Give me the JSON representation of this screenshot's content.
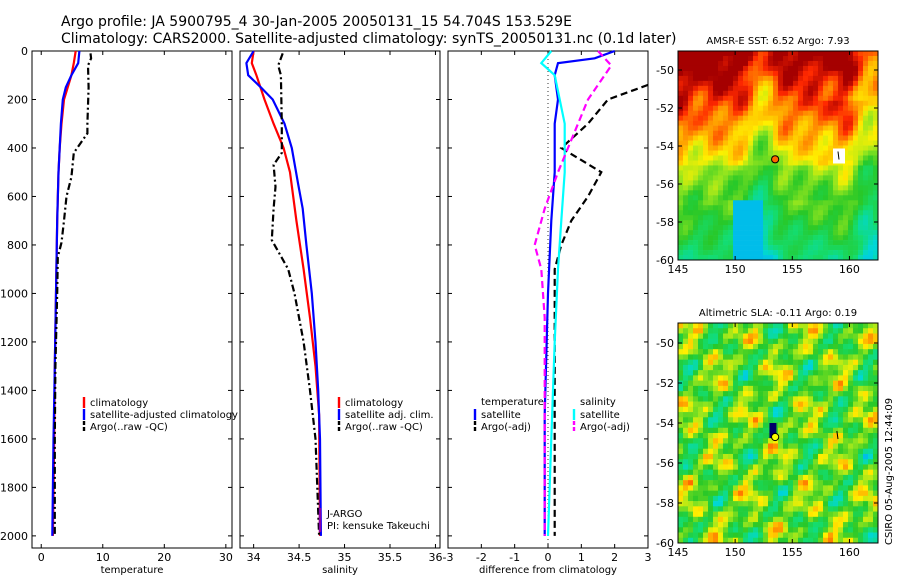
{
  "header": {
    "title_line1": "Argo profile: JA 5900795_4 30-Jan-2005 20050131_15 54.704S 153.529E",
    "title_line2": "Climatology: CARS2000. Satellite-adjusted climatology: synTS_20050131.nc (0.1d later)"
  },
  "footer": {
    "credit": "CSIRO 05-Aug-2005 12:44:09"
  },
  "colors": {
    "red": "#ff0000",
    "blue": "#0000ff",
    "black": "#000000",
    "cyan": "#00ffff",
    "magenta": "#ff00ff"
  },
  "chart_data": [
    {
      "type": "line",
      "id": "temperature",
      "xlabel": "temperature",
      "ylabel": "",
      "xlim": [
        -1.5,
        31
      ],
      "ylim": [
        2050,
        0
      ],
      "y_reversed": true,
      "xticks": [
        "0",
        "10",
        "20",
        "30"
      ],
      "yticks": [
        "0",
        "200",
        "400",
        "600",
        "800",
        "1000",
        "1200",
        "1400",
        "1600",
        "1800",
        "2000"
      ],
      "series": [
        {
          "name": "climatology",
          "color": "#ff0000",
          "dash": "solid",
          "points": [
            [
              5.6,
              0
            ],
            [
              5.3,
              50
            ],
            [
              4.9,
              100
            ],
            [
              4.3,
              150
            ],
            [
              3.7,
              200
            ],
            [
              3.3,
              300
            ],
            [
              3.0,
              400
            ],
            [
              2.8,
              500
            ],
            [
              2.6,
              700
            ],
            [
              2.4,
              1000
            ],
            [
              2.2,
              1300
            ],
            [
              2.1,
              1600
            ],
            [
              1.9,
              2000
            ]
          ]
        },
        {
          "name": "satellite-adjusted climatology",
          "color": "#0000ff",
          "dash": "solid",
          "points": [
            [
              6.2,
              0
            ],
            [
              6.0,
              50
            ],
            [
              4.9,
              100
            ],
            [
              4.0,
              150
            ],
            [
              3.5,
              200
            ],
            [
              3.2,
              300
            ],
            [
              3.0,
              400
            ],
            [
              2.8,
              500
            ],
            [
              2.6,
              700
            ],
            [
              2.4,
              1000
            ],
            [
              2.2,
              1300
            ],
            [
              2.0,
              1600
            ],
            [
              1.8,
              2000
            ]
          ]
        },
        {
          "name": "Argo(..raw -QC)",
          "color": "#000000",
          "dash": "dashdot",
          "points": [
            [
              8.0,
              10
            ],
            [
              8.1,
              30
            ],
            [
              7.6,
              60
            ],
            [
              7.7,
              150
            ],
            [
              7.5,
              300
            ],
            [
              7.5,
              340
            ],
            [
              6.4,
              380
            ],
            [
              5.3,
              420
            ],
            [
              4.9,
              520
            ],
            [
              4.1,
              600
            ],
            [
              3.7,
              700
            ],
            [
              3.3,
              790
            ],
            [
              2.7,
              850
            ],
            [
              2.6,
              1000
            ],
            [
              2.3,
              1300
            ],
            [
              2.2,
              1600
            ],
            [
              2.2,
              2000
            ]
          ]
        }
      ],
      "legend": {
        "position": "lower-right",
        "entries": [
          "climatology",
          "satellite-adjusted climatology",
          "Argo(..raw -QC)"
        ]
      }
    },
    {
      "type": "line",
      "id": "salinity",
      "xlabel": "salinity",
      "ylabel": "",
      "xlim": [
        33.85,
        36.05
      ],
      "ylim": [
        2050,
        0
      ],
      "y_reversed": true,
      "xticks": [
        "34",
        "34.5",
        "35",
        "35.5",
        "36"
      ],
      "series": [
        {
          "name": "climatology",
          "color": "#ff0000",
          "dash": "solid",
          "points": [
            [
              34.0,
              0
            ],
            [
              33.98,
              50
            ],
            [
              34.03,
              100
            ],
            [
              34.12,
              200
            ],
            [
              34.22,
              300
            ],
            [
              34.33,
              400
            ],
            [
              34.4,
              500
            ],
            [
              34.47,
              700
            ],
            [
              34.55,
              900
            ],
            [
              34.62,
              1100
            ],
            [
              34.68,
              1300
            ],
            [
              34.72,
              1500
            ],
            [
              34.73,
              2000
            ]
          ]
        },
        {
          "name": "satellite adj. clim.",
          "color": "#0000ff",
          "dash": "solid",
          "points": [
            [
              34.0,
              0
            ],
            [
              33.92,
              50
            ],
            [
              33.94,
              100
            ],
            [
              34.08,
              150
            ],
            [
              34.21,
              200
            ],
            [
              34.34,
              300
            ],
            [
              34.42,
              400
            ],
            [
              34.49,
              550
            ],
            [
              34.54,
              650
            ],
            [
              34.58,
              800
            ],
            [
              34.64,
              1000
            ],
            [
              34.68,
              1200
            ],
            [
              34.71,
              1400
            ],
            [
              34.73,
              1600
            ],
            [
              34.74,
              2000
            ]
          ]
        },
        {
          "name": "Argo(..raw -QC)",
          "color": "#000000",
          "dash": "dashdot",
          "points": [
            [
              34.32,
              10
            ],
            [
              34.27,
              60
            ],
            [
              34.3,
              100
            ],
            [
              34.31,
              300
            ],
            [
              34.31,
              420
            ],
            [
              34.22,
              470
            ],
            [
              34.24,
              560
            ],
            [
              34.22,
              650
            ],
            [
              34.2,
              780
            ],
            [
              34.26,
              820
            ],
            [
              34.38,
              900
            ],
            [
              34.45,
              1000
            ],
            [
              34.55,
              1200
            ],
            [
              34.62,
              1400
            ],
            [
              34.68,
              1600
            ],
            [
              34.7,
              1800
            ],
            [
              34.72,
              2000
            ]
          ]
        }
      ],
      "legend": {
        "position": "lower-right",
        "entries": [
          "climatology",
          "satellite adj. clim.",
          "Argo(..raw -QC)"
        ]
      },
      "annotations": [
        "J-ARGO",
        "PI: kensuke Takeuchi"
      ]
    },
    {
      "type": "line",
      "id": "difference",
      "xlabel": "difference from climatology",
      "ylabel": "",
      "xlim": [
        -3,
        3
      ],
      "ylim": [
        2050,
        0
      ],
      "y_reversed": true,
      "xticks": [
        "-3",
        "-2",
        "-1",
        "0",
        "1",
        "2",
        "3"
      ],
      "series": [
        {
          "name": "temperature satellite",
          "color": "#0000ff",
          "dash": "solid",
          "points": [
            [
              2.0,
              0
            ],
            [
              1.4,
              30
            ],
            [
              0.3,
              50
            ],
            [
              0.2,
              100
            ],
            [
              0.3,
              200
            ],
            [
              0.2,
              300
            ],
            [
              0.2,
              500
            ],
            [
              0.1,
              700
            ],
            [
              0.0,
              1000
            ],
            [
              -0.1,
              1500
            ],
            [
              -0.1,
              2000
            ]
          ]
        },
        {
          "name": "temperature Argo(-adj)",
          "color": "#000000",
          "dash": "dashed",
          "points": [
            [
              3.0,
              140
            ],
            [
              1.8,
              200
            ],
            [
              1.2,
              300
            ],
            [
              0.4,
              400
            ],
            [
              1.6,
              500
            ],
            [
              1.2,
              600
            ],
            [
              0.7,
              700
            ],
            [
              0.4,
              800
            ],
            [
              0.2,
              900
            ],
            [
              0.2,
              1200
            ],
            [
              0.2,
              2000
            ]
          ]
        },
        {
          "name": "salinity satellite",
          "color": "#00ffff",
          "dash": "solid",
          "points": [
            [
              0.1,
              0
            ],
            [
              -0.2,
              50
            ],
            [
              0.2,
              100
            ],
            [
              0.5,
              300
            ],
            [
              0.5,
              500
            ],
            [
              0.4,
              700
            ],
            [
              0.3,
              900
            ],
            [
              0.2,
              1200
            ],
            [
              0.1,
              1600
            ],
            [
              0.0,
              2000
            ]
          ]
        },
        {
          "name": "salinity Argo(-adj)",
          "color": "#ff00ff",
          "dash": "dashed",
          "points": [
            [
              1.5,
              0
            ],
            [
              1.9,
              60
            ],
            [
              1.2,
              200
            ],
            [
              0.6,
              400
            ],
            [
              0.3,
              500
            ],
            [
              -0.1,
              650
            ],
            [
              -0.4,
              800
            ],
            [
              -0.2,
              900
            ],
            [
              -0.1,
              1100
            ],
            [
              -0.1,
              1500
            ],
            [
              -0.1,
              2000
            ]
          ]
        }
      ],
      "legend_left": {
        "heading": "temperature",
        "entries": [
          "satellite",
          "Argo(-adj)"
        ]
      },
      "legend_right": {
        "heading": "salinity",
        "entries": [
          "satellite",
          "Argo(-adj)"
        ]
      }
    },
    {
      "type": "heatmap",
      "id": "sst_map",
      "title": "AMSR-E SST: 6.52 Argo: 7.93",
      "xlim": [
        145,
        162.5
      ],
      "ylim": [
        -60,
        -49
      ],
      "xticks": [
        "145",
        "150",
        "155",
        "160"
      ],
      "yticks": [
        "-50",
        "-52",
        "-54",
        "-56",
        "-58",
        "-60"
      ],
      "marker": {
        "lon": 153.5,
        "lat": -54.7,
        "color": "#ff6600"
      },
      "gap": {
        "lon": 159.0,
        "lat": -54.5
      }
    },
    {
      "type": "heatmap",
      "id": "sla_map",
      "title": "Altimetric SLA: -0.11 Argo: 0.19",
      "xlim": [
        145,
        162.5
      ],
      "ylim": [
        -60,
        -49
      ],
      "xticks": [
        "145",
        "150",
        "155",
        "160"
      ],
      "yticks": [
        "-50",
        "-52",
        "-54",
        "-56",
        "-58",
        "-60"
      ],
      "marker": {
        "lon": 153.5,
        "lat": -54.7,
        "color": "#ffff00"
      }
    }
  ]
}
